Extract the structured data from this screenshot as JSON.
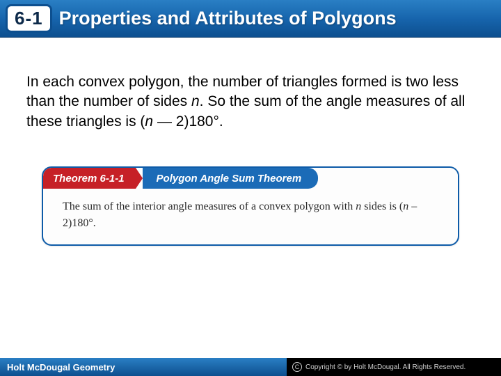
{
  "header": {
    "section_number": "6-1",
    "title": "Properties and Attributes of Polygons",
    "gradient_top": "#2a7fc4",
    "gradient_bottom": "#0d4f8f"
  },
  "body": {
    "paragraph_pre": "In each convex polygon, the number of triangles formed is two less than the number of sides ",
    "paragraph_var1": "n",
    "paragraph_mid": ". So the sum of the angle measures of all these triangles is (",
    "paragraph_var2": "n",
    "paragraph_post": " — 2)180°."
  },
  "theorem": {
    "label": "Theorem 6-1-1",
    "name": "Polygon Angle Sum Theorem",
    "text_pre": "The sum of the interior angle measures of a convex polygon with ",
    "text_var1": "n",
    "text_mid": " sides is (",
    "text_var2": "n",
    "text_post": " – 2)180°.",
    "label_bg": "#c62027",
    "name_bg": "#1b6bb7",
    "border_color": "#0d5ba8"
  },
  "footer": {
    "left_text": "Holt McDougal Geometry",
    "right_text": "Copyright © by Holt McDougal. All Rights Reserved.",
    "copyright_symbol": "C"
  }
}
